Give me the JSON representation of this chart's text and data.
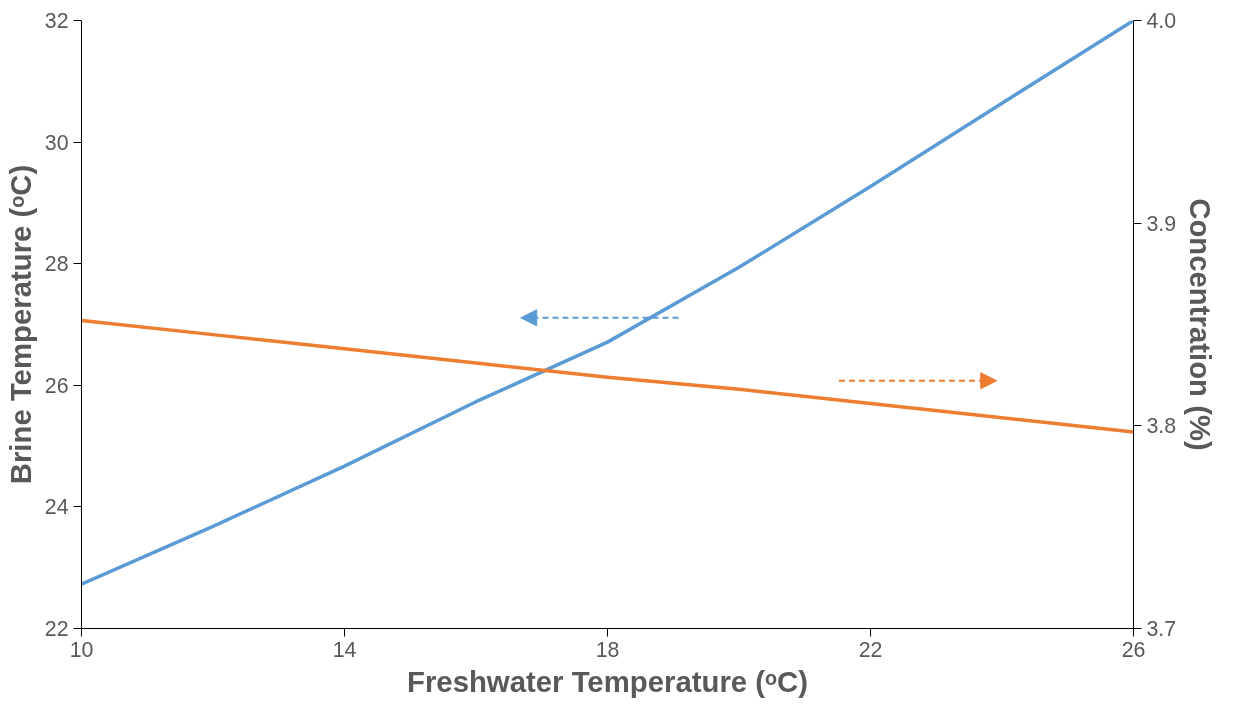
{
  "chart_data": {
    "type": "line",
    "xlabel": "Freshwater Temperature (ᵒC)",
    "ylabel": "Brine Temperature (ᵒC)",
    "y2label": "Concentration (%)",
    "x": [
      10,
      12,
      14,
      16,
      18,
      20,
      22,
      24,
      26
    ],
    "series": [
      {
        "color": "#5b9bd5",
        "values": [
          22.73,
          23.68,
          24.67,
          25.73,
          26.71,
          27.94,
          29.27,
          30.64,
          32.0
        ]
      },
      {
        "color": "#ed7d31",
        "axis": "y2",
        "values": [
          3.852,
          3.845,
          3.838,
          3.831,
          3.824,
          3.818,
          3.811,
          3.804,
          3.797
        ]
      }
    ],
    "xlim": [
      10,
      26
    ],
    "xticks": [
      10,
      14,
      18,
      22,
      26
    ],
    "ylim": [
      22,
      32
    ],
    "yticks": [
      22,
      24,
      26,
      28,
      30,
      32
    ],
    "y2lim": [
      3.7,
      4.0
    ],
    "y2ticks": [
      {
        "value": 3.7,
        "label": "3.7"
      },
      {
        "value": 3.8,
        "label": "3.8"
      },
      {
        "value": 3.9,
        "label": "3.9"
      },
      {
        "value": 4.0,
        "label": "4.0"
      }
    ],
    "grid": false,
    "marker": "none",
    "line_style": "solid"
  }
}
